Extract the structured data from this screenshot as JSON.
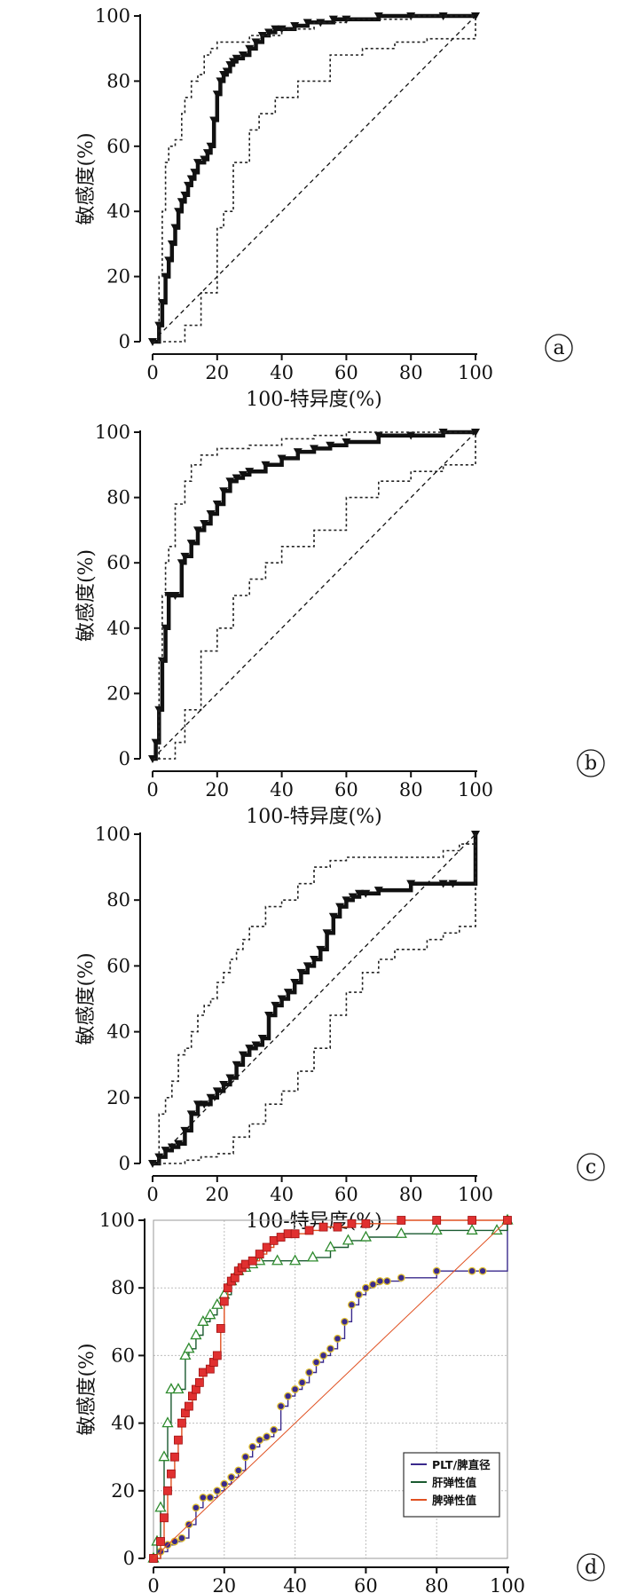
{
  "chart_data": [
    {
      "type": "line",
      "panel_label": "a",
      "xlabel": "100-特异度(%)",
      "ylabel": "敏感度(%)",
      "xlim": [
        0,
        100
      ],
      "ylim": [
        0,
        100
      ],
      "xticks": [
        "0",
        "20",
        "40",
        "60",
        "80",
        "100"
      ],
      "yticks": [
        "0",
        "20",
        "40",
        "60",
        "80",
        "100"
      ],
      "grid": false,
      "series": [
        {
          "role": "roc",
          "style": "solid-bold-triangles",
          "x": [
            0,
            2,
            3,
            4,
            5,
            6,
            7,
            8,
            9,
            10,
            11,
            12,
            13,
            14,
            16,
            17,
            18,
            19,
            20,
            21,
            22,
            23,
            24,
            25,
            26,
            28,
            30,
            32,
            34,
            36,
            38,
            40,
            44,
            48,
            52,
            56,
            60,
            70,
            80,
            90,
            100
          ],
          "y": [
            0,
            5,
            12,
            20,
            25,
            30,
            35,
            40,
            43,
            45,
            48,
            50,
            52,
            55,
            56,
            58,
            60,
            68,
            76,
            80,
            82,
            83,
            85,
            86,
            87,
            88,
            90,
            92,
            94,
            95,
            96,
            96,
            97,
            98,
            98,
            99,
            99,
            100,
            100,
            100,
            100
          ]
        },
        {
          "role": "ci-upper",
          "style": "dotted",
          "x": [
            0,
            2,
            3,
            4,
            5,
            7,
            9,
            10,
            12,
            14,
            16,
            18,
            20,
            30,
            40,
            50,
            60,
            70,
            80,
            90,
            100
          ],
          "y": [
            0,
            20,
            40,
            55,
            60,
            62,
            70,
            75,
            80,
            82,
            88,
            90,
            92,
            94,
            96,
            98,
            99,
            99,
            100,
            100,
            100
          ]
        },
        {
          "role": "ci-lower",
          "style": "dotted",
          "x": [
            0,
            5,
            9,
            10,
            15,
            20,
            22,
            25,
            30,
            33,
            38,
            45,
            55,
            65,
            75,
            85,
            95,
            100
          ],
          "y": [
            0,
            0,
            0,
            5,
            15,
            35,
            40,
            55,
            65,
            70,
            75,
            80,
            88,
            90,
            92,
            93,
            93,
            100
          ]
        },
        {
          "role": "reference",
          "style": "dashed",
          "x": [
            0,
            100
          ],
          "y": [
            0,
            100
          ]
        }
      ]
    },
    {
      "type": "line",
      "panel_label": "b",
      "xlabel": "100-特异度(%)",
      "ylabel": "敏感度(%)",
      "xlim": [
        0,
        100
      ],
      "ylim": [
        0,
        100
      ],
      "xticks": [
        "0",
        "20",
        "40",
        "60",
        "80",
        "100"
      ],
      "yticks": [
        "0",
        "20",
        "40",
        "60",
        "80",
        "100"
      ],
      "grid": false,
      "series": [
        {
          "role": "roc",
          "style": "solid-bold-triangles",
          "x": [
            0,
            1,
            2,
            3,
            4,
            5,
            7,
            9,
            10,
            12,
            14,
            16,
            18,
            20,
            22,
            24,
            26,
            28,
            30,
            35,
            40,
            45,
            50,
            55,
            60,
            70,
            80,
            90,
            100
          ],
          "y": [
            0,
            5,
            15,
            30,
            40,
            50,
            50,
            60,
            62,
            66,
            70,
            72,
            75,
            78,
            82,
            85,
            86,
            87,
            88,
            90,
            92,
            94,
            95,
            96,
            97,
            99,
            99,
            100,
            100
          ]
        },
        {
          "role": "ci-upper",
          "style": "dotted",
          "x": [
            0,
            2,
            3,
            4,
            5,
            7,
            10,
            12,
            15,
            20,
            30,
            40,
            50,
            60,
            80,
            100
          ],
          "y": [
            0,
            30,
            50,
            60,
            65,
            78,
            85,
            90,
            93,
            95,
            96,
            98,
            99,
            100,
            100,
            100
          ]
        },
        {
          "role": "ci-lower",
          "style": "dotted",
          "x": [
            0,
            7,
            10,
            15,
            20,
            25,
            30,
            35,
            40,
            50,
            60,
            70,
            80,
            90,
            100
          ],
          "y": [
            0,
            5,
            15,
            33,
            40,
            50,
            55,
            60,
            65,
            70,
            80,
            85,
            88,
            90,
            100
          ]
        },
        {
          "role": "reference",
          "style": "dashed",
          "x": [
            0,
            100
          ],
          "y": [
            0,
            100
          ]
        }
      ]
    },
    {
      "type": "line",
      "panel_label": "c",
      "xlabel": "100-特异度(%)",
      "ylabel": "敏感度(%)",
      "xlim": [
        0,
        100
      ],
      "ylim": [
        0,
        100
      ],
      "xticks": [
        "0",
        "20",
        "40",
        "60",
        "80",
        "100"
      ],
      "yticks": [
        "0",
        "20",
        "40",
        "60",
        "80",
        "100"
      ],
      "grid": false,
      "series": [
        {
          "role": "roc",
          "style": "solid-bold-triangles",
          "x": [
            0,
            2,
            4,
            6,
            8,
            10,
            12,
            14,
            16,
            18,
            20,
            22,
            24,
            26,
            28,
            30,
            32,
            34,
            36,
            38,
            40,
            42,
            44,
            46,
            48,
            50,
            52,
            54,
            56,
            58,
            60,
            62,
            64,
            66,
            70,
            80,
            90,
            93,
            100
          ],
          "y": [
            0,
            2,
            4,
            5,
            6,
            10,
            15,
            18,
            18,
            20,
            22,
            24,
            26,
            30,
            33,
            35,
            36,
            38,
            45,
            48,
            50,
            52,
            55,
            58,
            60,
            62,
            65,
            70,
            75,
            78,
            80,
            81,
            82,
            82,
            83,
            85,
            85,
            85,
            100
          ]
        },
        {
          "role": "ci-upper",
          "style": "dotted",
          "x": [
            0,
            2,
            4,
            6,
            8,
            10,
            12,
            14,
            16,
            18,
            20,
            22,
            24,
            26,
            28,
            30,
            35,
            40,
            45,
            50,
            55,
            60,
            70,
            80,
            90,
            95,
            100
          ],
          "y": [
            0,
            15,
            20,
            25,
            33,
            35,
            40,
            45,
            48,
            50,
            55,
            58,
            62,
            65,
            68,
            72,
            78,
            80,
            85,
            90,
            92,
            93,
            93,
            93,
            95,
            97,
            100
          ]
        },
        {
          "role": "ci-lower",
          "style": "dotted",
          "x": [
            0,
            5,
            10,
            15,
            20,
            25,
            30,
            35,
            40,
            45,
            50,
            55,
            60,
            65,
            70,
            75,
            80,
            85,
            90,
            95,
            100
          ],
          "y": [
            0,
            0,
            1,
            2,
            3,
            8,
            12,
            18,
            22,
            28,
            35,
            45,
            52,
            58,
            62,
            65,
            65,
            68,
            70,
            72,
            100
          ]
        },
        {
          "role": "reference",
          "style": "dashed",
          "x": [
            0,
            100
          ],
          "y": [
            0,
            100
          ]
        }
      ]
    },
    {
      "type": "line",
      "panel_label": "d",
      "xlabel": "100-特异度(%)",
      "ylabel": "敏感度(%)",
      "xlim": [
        0,
        100
      ],
      "ylim": [
        0,
        100
      ],
      "xticks": [
        "0",
        "20",
        "40",
        "60",
        "80",
        "100"
      ],
      "yticks": [
        "0",
        "20",
        "40",
        "60",
        "80",
        "100"
      ],
      "grid": true,
      "legend_position": "bottom-right",
      "series": [
        {
          "name": "PLT/脾直径",
          "color": "#3a2a8c",
          "marker": "circle",
          "marker_fill": "#3a2a8c",
          "marker_edge": "#e0c030",
          "x": [
            0,
            2,
            4,
            6,
            8,
            10,
            12,
            14,
            16,
            18,
            20,
            22,
            24,
            26,
            28,
            30,
            32,
            34,
            36,
            38,
            40,
            42,
            44,
            46,
            48,
            50,
            52,
            54,
            56,
            58,
            60,
            62,
            64,
            66,
            70,
            80,
            90,
            93,
            100
          ],
          "y": [
            0,
            2,
            4,
            5,
            6,
            10,
            15,
            18,
            18,
            20,
            22,
            24,
            26,
            30,
            33,
            35,
            36,
            38,
            45,
            48,
            50,
            52,
            55,
            58,
            60,
            62,
            65,
            70,
            75,
            78,
            80,
            81,
            82,
            82,
            83,
            85,
            85,
            85,
            100
          ]
        },
        {
          "name": "肝弹性值",
          "color": "#1a5a30",
          "marker": "triangle",
          "marker_fill": "#ffffff",
          "marker_edge": "#2e8b2e",
          "x": [
            0,
            1,
            2,
            3,
            4,
            5,
            7,
            9,
            10,
            12,
            14,
            16,
            18,
            20,
            22,
            24,
            26,
            28,
            30,
            35,
            40,
            45,
            50,
            55,
            60,
            70,
            80,
            90,
            97,
            100
          ],
          "y": [
            0,
            5,
            15,
            30,
            40,
            50,
            50,
            60,
            62,
            66,
            70,
            72,
            75,
            78,
            82,
            85,
            86,
            87,
            88,
            88,
            88,
            89,
            92,
            94,
            95,
            96,
            97,
            97,
            97,
            100
          ]
        },
        {
          "name": "脾弹性值",
          "color": "#e05020",
          "marker": "square",
          "marker_fill": "#e03030",
          "marker_edge": "#a01010",
          "x": [
            0,
            2,
            3,
            4,
            5,
            6,
            7,
            8,
            9,
            10,
            11,
            12,
            13,
            14,
            16,
            17,
            18,
            19,
            20,
            21,
            22,
            23,
            24,
            25,
            26,
            28,
            30,
            32,
            34,
            36,
            38,
            40,
            44,
            48,
            52,
            56,
            60,
            70,
            80,
            90,
            100
          ],
          "y": [
            0,
            5,
            12,
            20,
            25,
            30,
            35,
            40,
            43,
            45,
            48,
            50,
            52,
            55,
            56,
            58,
            60,
            68,
            76,
            80,
            82,
            83,
            85,
            86,
            87,
            88,
            90,
            92,
            94,
            95,
            96,
            96,
            97,
            98,
            98,
            99,
            99,
            100,
            100,
            100,
            100
          ]
        },
        {
          "role": "reference",
          "color": "#e05020",
          "x": [
            0,
            100
          ],
          "y": [
            0,
            100
          ]
        }
      ]
    }
  ]
}
